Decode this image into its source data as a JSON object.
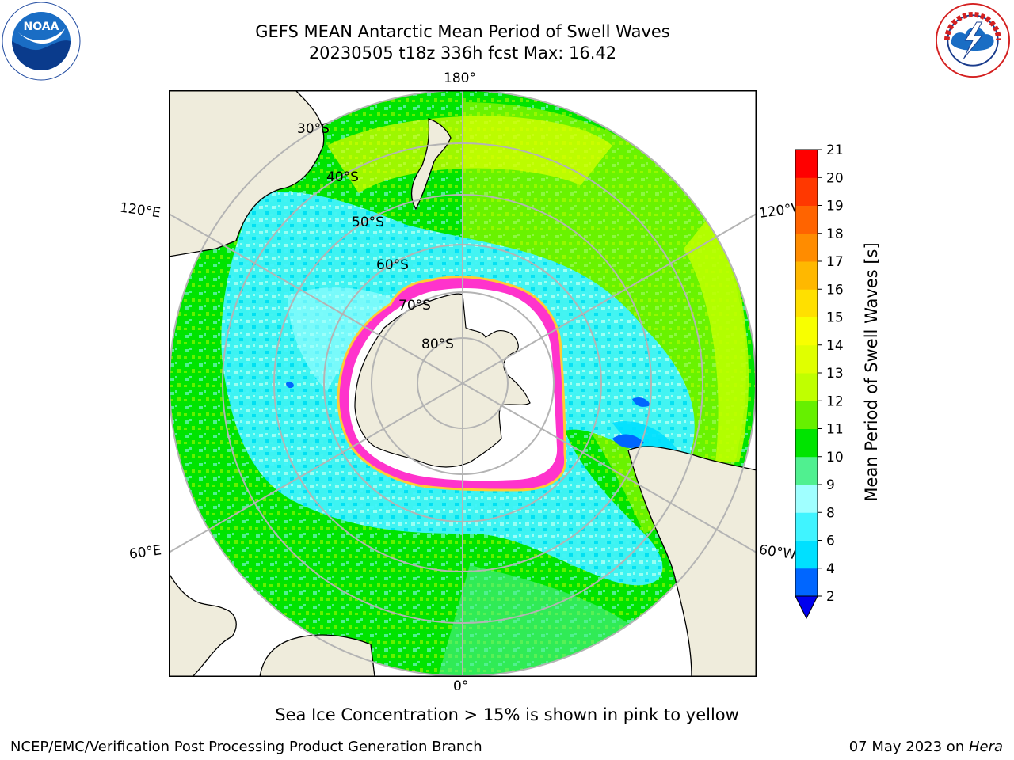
{
  "title": {
    "line1": "GEFS MEAN Antarctic Mean Period of Swell Waves",
    "line2": "20230505 t18z 336h fcst   Max: 16.42"
  },
  "logos": {
    "noaa": {
      "text": "NOAA",
      "ring_text": "NATIONAL OCEANIC AND ATMOSPHERIC ADMINISTRATION · U.S. DEPARTMENT OF COMMERCE"
    },
    "nws": {
      "ring_text": "NATIONAL WEATHER SERVICE"
    }
  },
  "map": {
    "projection": "south-polar-stereographic",
    "lon_labels": {
      "top": "180°",
      "bottom": "0°",
      "left_upper": "120°E",
      "right_upper": "120°W",
      "left_lower": "60°E",
      "right_lower": "60°W"
    },
    "lat_labels": [
      "30°S",
      "40°S",
      "50°S",
      "60°S",
      "70°S",
      "80°S"
    ],
    "colors": {
      "land": "#efecdc",
      "ice_sheet": "#ffffff",
      "grid": "#b4b4b4",
      "coast": "#000000",
      "ice_edge": "#ff33cc"
    }
  },
  "colorbar": {
    "label": "Mean Period of Swell Waves [s]",
    "ticks": [
      "2",
      "4",
      "6",
      "8",
      "9",
      "10",
      "11",
      "12",
      "13",
      "14",
      "15",
      "16",
      "17",
      "18",
      "19",
      "20",
      "21"
    ],
    "colors": [
      "#0066ff",
      "#00e0ff",
      "#40f4ff",
      "#a0ffff",
      "#50f090",
      "#00e400",
      "#66f000",
      "#c0ff00",
      "#e0ff00",
      "#f8ff00",
      "#ffe000",
      "#ffb800",
      "#ff8c00",
      "#ff6400",
      "#ff3800",
      "#ff0000"
    ],
    "extend_color": "#0000ee"
  },
  "notes": {
    "ice": "Sea Ice Concentration > 15% is shown in pink to yellow"
  },
  "footer": {
    "left": "NCEP/EMC/Verification Post Processing Product Generation Branch",
    "date": "07 May 2023 on ",
    "machine": "Hera"
  }
}
